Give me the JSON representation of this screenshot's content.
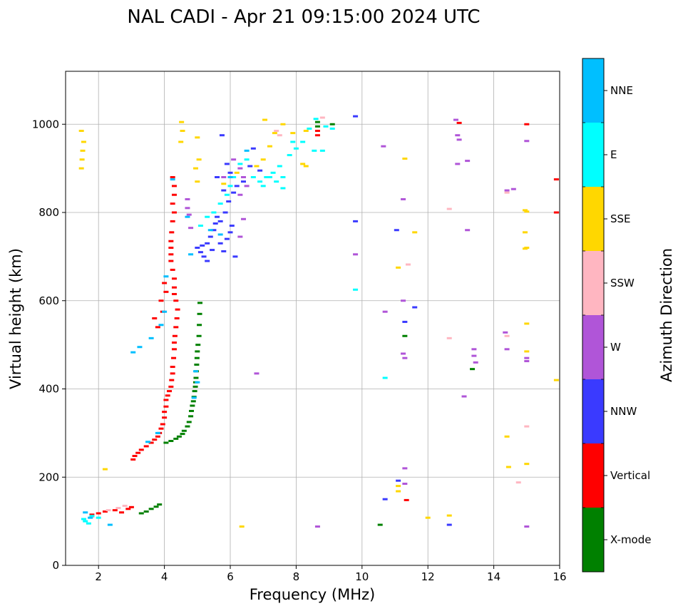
{
  "chart_data": {
    "type": "scatter",
    "title": "NAL CADI - Apr 21 09:15:00 2024 UTC",
    "xlabel": "Frequency (MHz)",
    "ylabel": "Virtual height (km)",
    "xlim": [
      1,
      16
    ],
    "ylim": [
      0,
      1120
    ],
    "xticks": [
      2,
      4,
      6,
      8,
      10,
      12,
      14,
      16
    ],
    "yticks": [
      0,
      200,
      400,
      600,
      800,
      1000
    ],
    "grid": true,
    "colorbar": {
      "label": "Azimuth Direction",
      "categories": [
        {
          "name": "X-mode",
          "color": "#008000"
        },
        {
          "name": "Vertical",
          "color": "#ff0000"
        },
        {
          "name": "NNW",
          "color": "#3a3aff"
        },
        {
          "name": "W",
          "color": "#b055d8"
        },
        {
          "name": "SSW",
          "color": "#ffb6c1"
        },
        {
          "name": "SSE",
          "color": "#ffd700"
        },
        {
          "name": "E",
          "color": "#00ffff"
        },
        {
          "name": "NNE",
          "color": "#00bfff"
        }
      ]
    },
    "series": [
      {
        "name": "X-mode",
        "points": [
          [
            3.3,
            118
          ],
          [
            3.45,
            122
          ],
          [
            3.6,
            128
          ],
          [
            3.75,
            133
          ],
          [
            3.85,
            138
          ],
          [
            4.05,
            278
          ],
          [
            4.2,
            282
          ],
          [
            4.35,
            287
          ],
          [
            4.45,
            292
          ],
          [
            4.55,
            298
          ],
          [
            4.6,
            305
          ],
          [
            4.7,
            315
          ],
          [
            4.75,
            325
          ],
          [
            4.8,
            338
          ],
          [
            4.82,
            350
          ],
          [
            4.85,
            362
          ],
          [
            4.88,
            372
          ],
          [
            4.9,
            382
          ],
          [
            4.92,
            395
          ],
          [
            4.94,
            405
          ],
          [
            4.95,
            415
          ],
          [
            4.96,
            425
          ],
          [
            4.97,
            440
          ],
          [
            4.98,
            455
          ],
          [
            4.99,
            470
          ],
          [
            5.0,
            485
          ],
          [
            5.02,
            500
          ],
          [
            5.05,
            520
          ],
          [
            5.06,
            545
          ],
          [
            5.07,
            570
          ],
          [
            5.08,
            595
          ],
          [
            10.55,
            92
          ],
          [
            11.3,
            520
          ],
          [
            13.35,
            445
          ],
          [
            8.65,
            1005
          ],
          [
            8.65,
            995
          ],
          [
            9.1,
            1000
          ]
        ]
      },
      {
        "name": "Vertical",
        "points": [
          [
            1.8,
            115
          ],
          [
            2.0,
            118
          ],
          [
            2.2,
            122
          ],
          [
            2.5,
            125
          ],
          [
            2.7,
            120
          ],
          [
            2.9,
            128
          ],
          [
            3.0,
            132
          ],
          [
            3.05,
            240
          ],
          [
            3.1,
            248
          ],
          [
            3.2,
            255
          ],
          [
            3.3,
            262
          ],
          [
            3.45,
            270
          ],
          [
            3.6,
            278
          ],
          [
            3.7,
            285
          ],
          [
            3.8,
            292
          ],
          [
            3.85,
            300
          ],
          [
            3.9,
            310
          ],
          [
            3.95,
            320
          ],
          [
            4.0,
            335
          ],
          [
            4.0,
            348
          ],
          [
            4.05,
            360
          ],
          [
            4.05,
            375
          ],
          [
            4.1,
            385
          ],
          [
            4.15,
            395
          ],
          [
            4.2,
            405
          ],
          [
            4.22,
            420
          ],
          [
            4.25,
            435
          ],
          [
            4.25,
            450
          ],
          [
            4.28,
            470
          ],
          [
            4.3,
            490
          ],
          [
            4.3,
            505
          ],
          [
            4.32,
            520
          ],
          [
            4.35,
            540
          ],
          [
            4.38,
            560
          ],
          [
            4.4,
            580
          ],
          [
            4.35,
            600
          ],
          [
            4.3,
            615
          ],
          [
            4.3,
            630
          ],
          [
            4.3,
            650
          ],
          [
            4.25,
            670
          ],
          [
            4.2,
            690
          ],
          [
            4.2,
            705
          ],
          [
            4.2,
            720
          ],
          [
            4.2,
            735
          ],
          [
            4.22,
            755
          ],
          [
            4.25,
            780
          ],
          [
            4.3,
            800
          ],
          [
            4.25,
            820
          ],
          [
            4.3,
            840
          ],
          [
            4.3,
            860
          ],
          [
            4.25,
            880
          ],
          [
            3.8,
            540
          ],
          [
            3.7,
            560
          ],
          [
            3.95,
            575
          ],
          [
            3.9,
            600
          ],
          [
            4.0,
            640
          ],
          [
            4.05,
            620
          ],
          [
            8.65,
            985
          ],
          [
            8.65,
            975
          ],
          [
            11.35,
            148
          ],
          [
            12.95,
            1003
          ],
          [
            15.0,
            1000
          ],
          [
            15.9,
            875
          ],
          [
            15.9,
            800
          ]
        ]
      },
      {
        "name": "NNW",
        "points": [
          [
            5.0,
            720
          ],
          [
            5.1,
            710
          ],
          [
            5.2,
            700
          ],
          [
            5.3,
            730
          ],
          [
            5.4,
            745
          ],
          [
            5.5,
            760
          ],
          [
            5.55,
            775
          ],
          [
            5.6,
            790
          ],
          [
            5.7,
            730
          ],
          [
            5.8,
            712
          ],
          [
            5.9,
            740
          ],
          [
            6.0,
            755
          ],
          [
            6.05,
            770
          ],
          [
            5.85,
            800
          ],
          [
            5.95,
            825
          ],
          [
            6.1,
            845
          ],
          [
            6.2,
            860
          ],
          [
            5.3,
            690
          ],
          [
            5.15,
            725
          ],
          [
            5.45,
            715
          ],
          [
            5.7,
            780
          ],
          [
            6.15,
            700
          ],
          [
            5.8,
            850
          ],
          [
            6.0,
            890
          ],
          [
            5.75,
            975
          ],
          [
            6.7,
            945
          ],
          [
            6.6,
            905
          ],
          [
            6.9,
            895
          ],
          [
            5.6,
            880
          ],
          [
            6.4,
            870
          ],
          [
            5.9,
            910
          ],
          [
            9.8,
            1018
          ],
          [
            9.8,
            780
          ],
          [
            10.7,
            150
          ],
          [
            11.1,
            192
          ],
          [
            11.05,
            760
          ],
          [
            11.6,
            585
          ],
          [
            11.3,
            552
          ],
          [
            12.65,
            92
          ]
        ]
      },
      {
        "name": "W",
        "points": [
          [
            4.7,
            810
          ],
          [
            4.7,
            830
          ],
          [
            4.75,
            795
          ],
          [
            4.8,
            765
          ],
          [
            6.1,
            920
          ],
          [
            6.3,
            900
          ],
          [
            6.4,
            880
          ],
          [
            6.5,
            860
          ],
          [
            6.3,
            840
          ],
          [
            6.4,
            785
          ],
          [
            6.3,
            745
          ],
          [
            5.8,
            880
          ],
          [
            9.8,
            705
          ],
          [
            6.8,
            435
          ],
          [
            10.65,
            950
          ],
          [
            10.7,
            575
          ],
          [
            11.25,
            480
          ],
          [
            11.3,
            470
          ],
          [
            11.25,
            600
          ],
          [
            11.3,
            220
          ],
          [
            11.3,
            185
          ],
          [
            11.25,
            830
          ],
          [
            12.85,
            1010
          ],
          [
            12.9,
            975
          ],
          [
            12.95,
            965
          ],
          [
            12.9,
            910
          ],
          [
            13.2,
            917
          ],
          [
            13.2,
            760
          ],
          [
            13.1,
            383
          ],
          [
            13.4,
            490
          ],
          [
            13.4,
            475
          ],
          [
            13.45,
            460
          ],
          [
            14.35,
            528
          ],
          [
            14.4,
            490
          ],
          [
            14.4,
            850
          ],
          [
            14.6,
            853
          ],
          [
            15.0,
            962
          ],
          [
            15.0,
            470
          ],
          [
            15.0,
            463
          ],
          [
            15.0,
            88
          ],
          [
            8.65,
            88
          ]
        ]
      },
      {
        "name": "SSW",
        "points": [
          [
            1.8,
            110
          ],
          [
            2.3,
            125
          ],
          [
            2.6,
            130
          ],
          [
            2.8,
            135
          ],
          [
            7.4,
            985
          ],
          [
            7.5,
            975
          ],
          [
            8.8,
            1015
          ],
          [
            12.65,
            808
          ],
          [
            12.65,
            515
          ],
          [
            14.4,
            520
          ],
          [
            14.4,
            845
          ],
          [
            14.75,
            188
          ],
          [
            15.0,
            315
          ],
          [
            11.4,
            682
          ]
        ]
      },
      {
        "name": "SSE",
        "points": [
          [
            1.48,
            900
          ],
          [
            1.5,
            920
          ],
          [
            1.52,
            940
          ],
          [
            1.55,
            960
          ],
          [
            1.48,
            985
          ],
          [
            4.5,
            960
          ],
          [
            4.55,
            985
          ],
          [
            4.52,
            1005
          ],
          [
            4.95,
            900
          ],
          [
            5.05,
            920
          ],
          [
            5.0,
            870
          ],
          [
            5.0,
            970
          ],
          [
            5.8,
            865
          ],
          [
            6.2,
            890
          ],
          [
            6.8,
            905
          ],
          [
            7.0,
            920
          ],
          [
            7.2,
            950
          ],
          [
            7.35,
            980
          ],
          [
            7.05,
            1010
          ],
          [
            7.6,
            1000
          ],
          [
            7.9,
            980
          ],
          [
            8.3,
            985
          ],
          [
            8.2,
            910
          ],
          [
            8.3,
            905
          ],
          [
            11.1,
            675
          ],
          [
            11.1,
            180
          ],
          [
            11.1,
            168
          ],
          [
            11.3,
            922
          ],
          [
            11.6,
            755
          ],
          [
            12.0,
            108
          ],
          [
            12.65,
            113
          ],
          [
            14.4,
            292
          ],
          [
            14.45,
            223
          ],
          [
            14.95,
            805
          ],
          [
            15.0,
            802
          ],
          [
            14.95,
            755
          ],
          [
            15.0,
            720
          ],
          [
            14.95,
            718
          ],
          [
            15.0,
            548
          ],
          [
            15.0,
            485
          ],
          [
            15.0,
            230
          ],
          [
            15.9,
            420
          ],
          [
            6.35,
            88
          ],
          [
            2.2,
            218
          ]
        ]
      },
      {
        "name": "E",
        "points": [
          [
            1.55,
            105
          ],
          [
            1.6,
            100
          ],
          [
            1.7,
            95
          ],
          [
            1.8,
            112
          ],
          [
            2.0,
            108
          ],
          [
            5.1,
            770
          ],
          [
            5.3,
            790
          ],
          [
            5.5,
            800
          ],
          [
            5.7,
            820
          ],
          [
            5.9,
            840
          ],
          [
            6.0,
            860
          ],
          [
            6.1,
            880
          ],
          [
            6.3,
            910
          ],
          [
            6.5,
            920
          ],
          [
            6.7,
            880
          ],
          [
            6.9,
            870
          ],
          [
            7.0,
            860
          ],
          [
            7.1,
            880
          ],
          [
            7.3,
            890
          ],
          [
            7.4,
            870
          ],
          [
            7.5,
            905
          ],
          [
            7.6,
            880
          ],
          [
            7.8,
            930
          ],
          [
            7.9,
            960
          ],
          [
            8.0,
            945
          ],
          [
            8.2,
            960
          ],
          [
            8.4,
            990
          ],
          [
            8.6,
            1012
          ],
          [
            8.9,
            995
          ],
          [
            9.1,
            990
          ],
          [
            8.55,
            940
          ],
          [
            8.8,
            940
          ],
          [
            9.8,
            625
          ],
          [
            10.7,
            425
          ],
          [
            7.6,
            855
          ],
          [
            7.2,
            880
          ]
        ]
      },
      {
        "name": "NNE",
        "points": [
          [
            1.6,
            120
          ],
          [
            1.75,
            108
          ],
          [
            2.35,
            92
          ],
          [
            3.05,
            483
          ],
          [
            3.25,
            495
          ],
          [
            3.6,
            515
          ],
          [
            3.9,
            545
          ],
          [
            4.0,
            575
          ],
          [
            4.05,
            655
          ],
          [
            4.25,
            875
          ],
          [
            4.7,
            790
          ],
          [
            4.8,
            705
          ],
          [
            4.9,
            380
          ],
          [
            5.0,
            415
          ],
          [
            4.95,
            440
          ],
          [
            5.4,
            760
          ],
          [
            5.7,
            750
          ],
          [
            6.0,
            880
          ],
          [
            6.5,
            940
          ],
          [
            3.5,
            280
          ],
          [
            3.8,
            300
          ]
        ]
      }
    ]
  }
}
